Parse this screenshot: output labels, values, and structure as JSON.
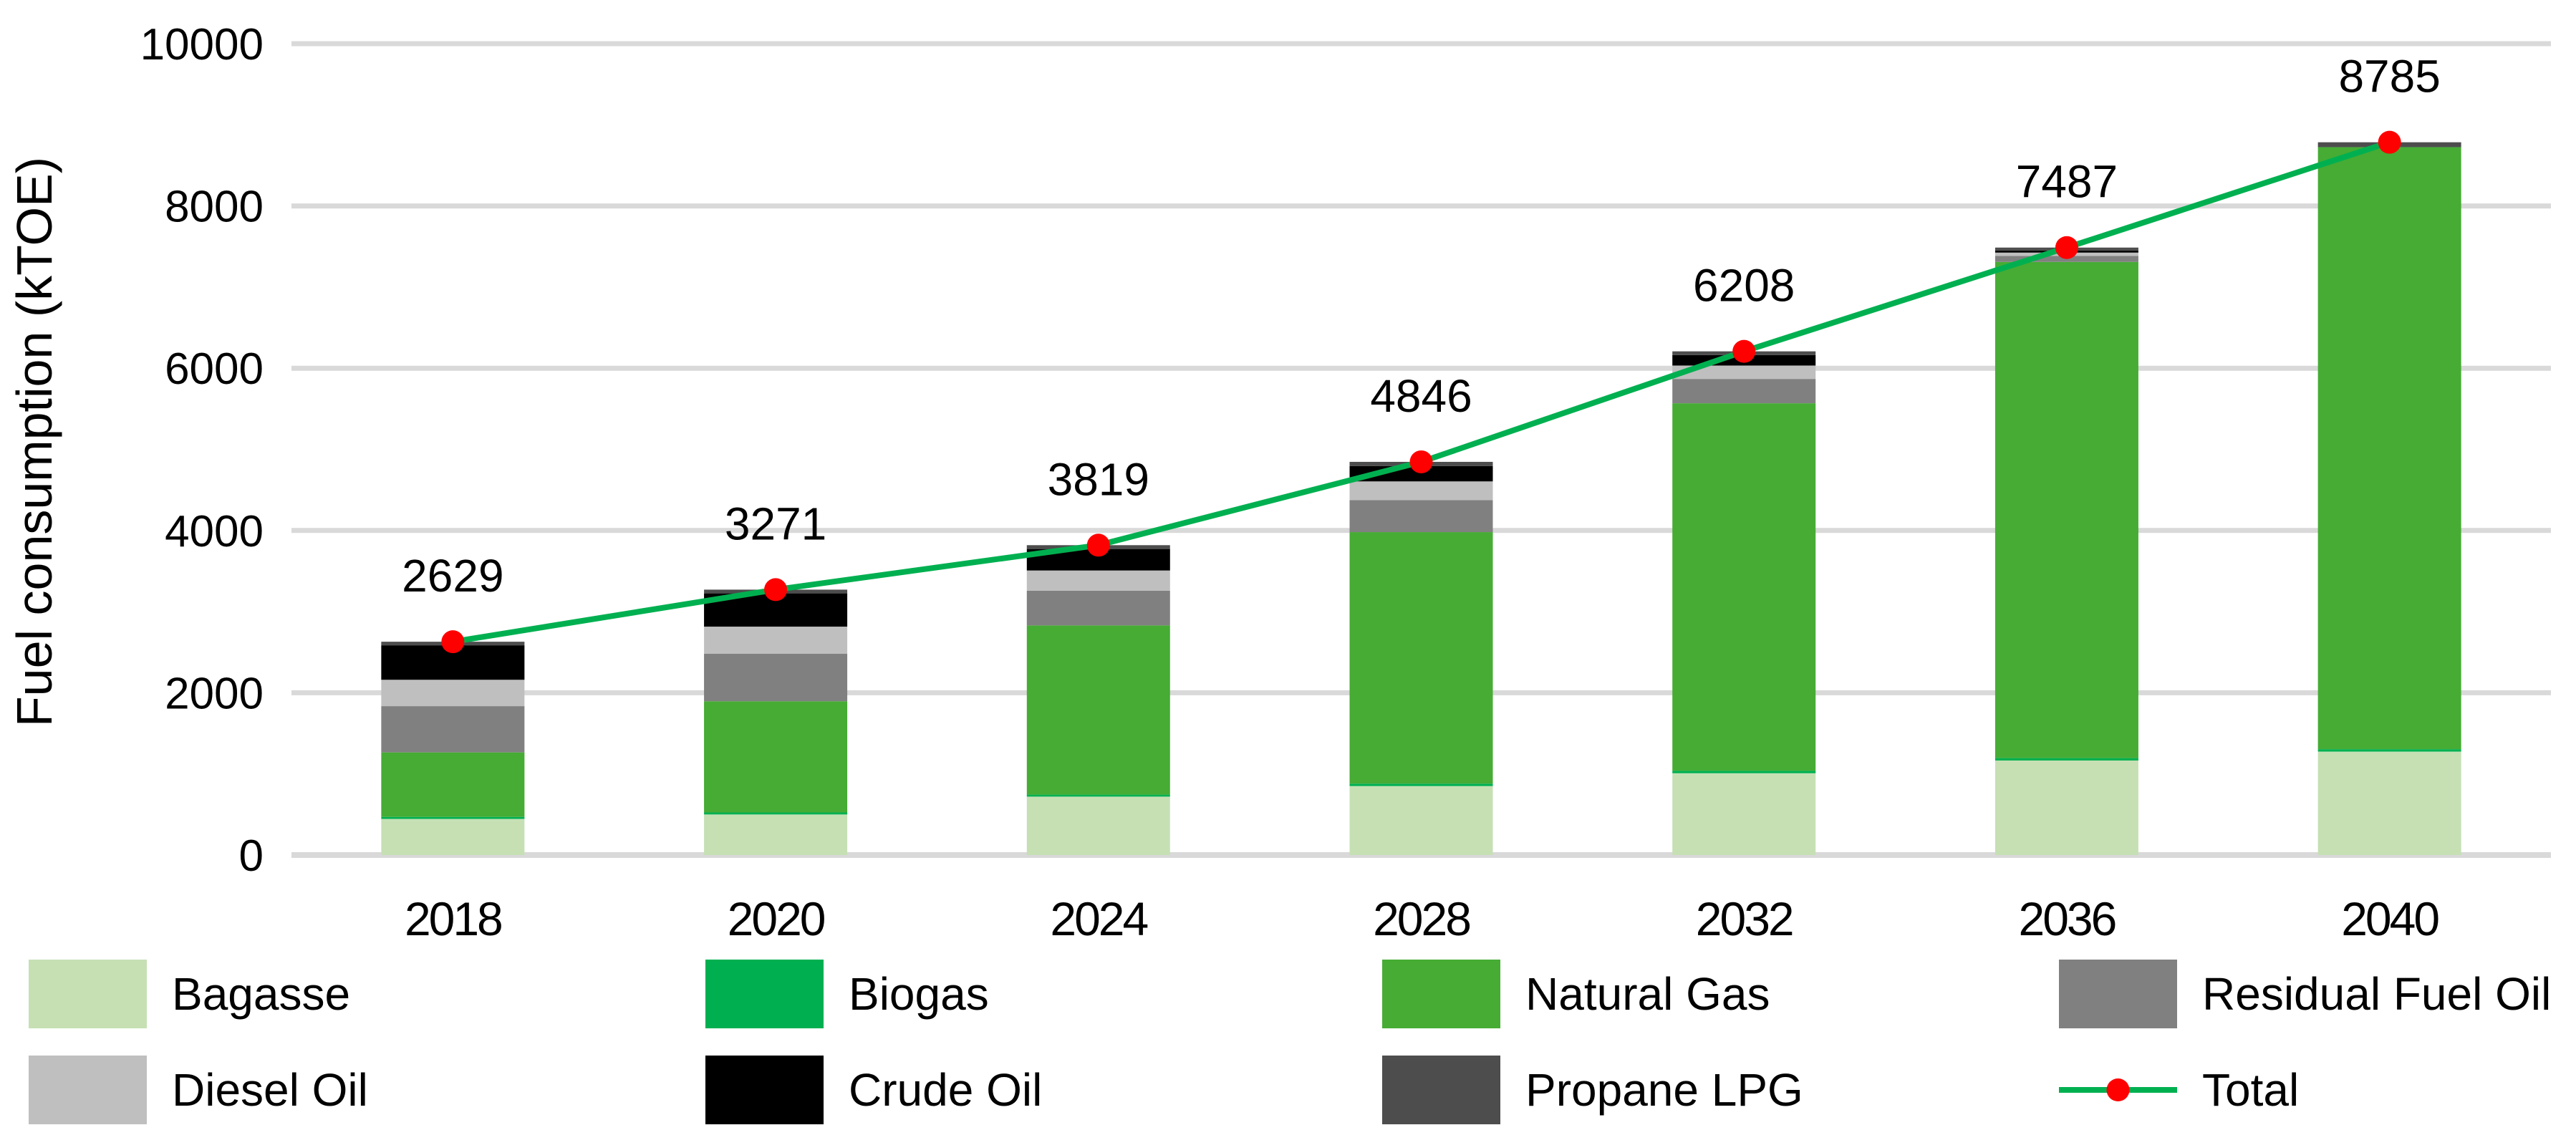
{
  "chart_data": {
    "type": "bar",
    "subtype": "stacked-column-with-total-line",
    "title": "",
    "xlabel": "",
    "ylabel": "Fuel consumption (kTOE)",
    "categories": [
      "2018",
      "2020",
      "2024",
      "2028",
      "2032",
      "2036",
      "2040"
    ],
    "series": [
      {
        "name": "Bagasse",
        "color": "#c6e0b4",
        "values": [
          445,
          500,
          720,
          850,
          1008,
          1165,
          1275
        ]
      },
      {
        "name": "Biogas",
        "color": "#00b050",
        "values": [
          25,
          25,
          25,
          30,
          30,
          30,
          30
        ]
      },
      {
        "name": "Natural Gas",
        "color": "#46ac34",
        "values": [
          795,
          1370,
          2085,
          3100,
          4530,
          6115,
          7420
        ]
      },
      {
        "name": "Residual Fuel Oil",
        "color": "#808080",
        "values": [
          570,
          585,
          427,
          395,
          300,
          75,
          0
        ]
      },
      {
        "name": "Diesel Oil",
        "color": "#bfbfbf",
        "values": [
          325,
          335,
          250,
          230,
          165,
          40,
          0
        ]
      },
      {
        "name": "Crude Oil",
        "color": "#000000",
        "values": [
          425,
          410,
          265,
          190,
          130,
          25,
          0
        ]
      },
      {
        "name": "Propane LPG",
        "color": "#4d4d4d",
        "values": [
          44,
          46,
          47,
          51,
          45,
          37,
          60
        ]
      }
    ],
    "line_series": {
      "name": "Total",
      "color": "#00b050",
      "marker_color": "#ff0000",
      "values": [
        2629,
        3271,
        3819,
        4846,
        6208,
        7487,
        8785
      ]
    },
    "data_labels": [
      "2629",
      "3271",
      "3819",
      "4846",
      "6208",
      "7487",
      "8785"
    ],
    "ylim": [
      0,
      10000
    ],
    "yticks": [
      0,
      2000,
      4000,
      6000,
      8000,
      10000
    ],
    "grid": true,
    "gridline_color": "#d9d9d9",
    "legend_position": "bottom",
    "legend_rows": [
      [
        "Bagasse",
        "Biogas",
        "Natural Gas",
        "Residual Fuel Oil"
      ],
      [
        "Diesel Oil",
        "Crude Oil",
        "Propane LPG",
        "Total"
      ]
    ]
  }
}
